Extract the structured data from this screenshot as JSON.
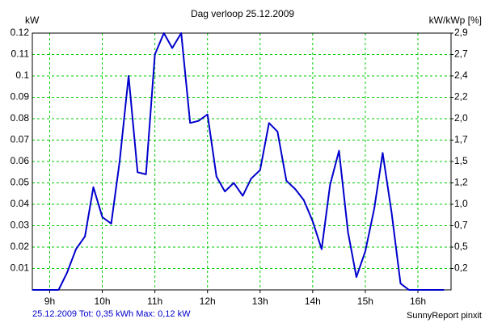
{
  "chart_data": {
    "type": "line",
    "title": "Dag  verloop 25.12.2009",
    "y_label": "kW",
    "y2_label": "kW/kWp [%]",
    "footer_left": "25.12.2009 Tot: 0,35 kWh Max: 0,12 kW",
    "footer_right": "SunnyReport pinxit",
    "x": [
      8.67,
      8.83,
      9.0,
      9.17,
      9.33,
      9.5,
      9.67,
      9.83,
      10.0,
      10.17,
      10.33,
      10.5,
      10.67,
      10.83,
      11.0,
      11.17,
      11.33,
      11.5,
      11.67,
      11.83,
      12.0,
      12.17,
      12.33,
      12.5,
      12.67,
      12.83,
      13.0,
      13.17,
      13.33,
      13.5,
      13.67,
      13.83,
      14.0,
      14.17,
      14.33,
      14.5,
      14.67,
      14.83,
      15.0,
      15.17,
      15.33,
      15.5,
      15.67,
      15.83,
      16.0,
      16.17,
      16.33,
      16.5
    ],
    "series": [
      {
        "name": "kW",
        "color": "#0000cc",
        "values": [
          0,
          0,
          0,
          0,
          0.008,
          0.019,
          0.025,
          0.048,
          0.034,
          0.031,
          0.06,
          0.1,
          0.055,
          0.054,
          0.11,
          0.12,
          0.113,
          0.12,
          0.078,
          0.079,
          0.082,
          0.053,
          0.046,
          0.05,
          0.044,
          0.052,
          0.056,
          0.078,
          0.074,
          0.051,
          0.047,
          0.042,
          0.032,
          0.019,
          0.049,
          0.065,
          0.027,
          0.006,
          0.018,
          0.038,
          0.064,
          0.036,
          0.003,
          0,
          0,
          0,
          0,
          0
        ]
      }
    ],
    "xlim": [
      8.67,
      16.63
    ],
    "xticks": [
      {
        "value": 9,
        "label": "9h"
      },
      {
        "value": 10,
        "label": "10h"
      },
      {
        "value": 11,
        "label": "11h"
      },
      {
        "value": 12,
        "label": "12h"
      },
      {
        "value": 13,
        "label": "13h"
      },
      {
        "value": 14,
        "label": "14h"
      },
      {
        "value": 15,
        "label": "15h"
      },
      {
        "value": 16,
        "label": "16h"
      }
    ],
    "ylim": [
      0,
      0.12
    ],
    "yticks": [
      0.01,
      0.02,
      0.03,
      0.04,
      0.05,
      0.06,
      0.07,
      0.08,
      0.09,
      0.1,
      0.11,
      0.12
    ],
    "y2lim": [
      0,
      2.928
    ],
    "y2ticks": [
      {
        "value": 0.244,
        "label": "0,2"
      },
      {
        "value": 0.488,
        "label": "0,5"
      },
      {
        "value": 0.732,
        "label": "0,7"
      },
      {
        "value": 0.976,
        "label": "1,0"
      },
      {
        "value": 1.22,
        "label": "1,2"
      },
      {
        "value": 1.464,
        "label": "1,5"
      },
      {
        "value": 1.708,
        "label": "1,7"
      },
      {
        "value": 1.952,
        "label": "2,0"
      },
      {
        "value": 2.196,
        "label": "2,2"
      },
      {
        "value": 2.44,
        "label": "2,4"
      },
      {
        "value": 2.684,
        "label": "2,7"
      },
      {
        "value": 2.928,
        "label": "2,9"
      }
    ],
    "grid": true,
    "grid_color": "#00cc00"
  }
}
